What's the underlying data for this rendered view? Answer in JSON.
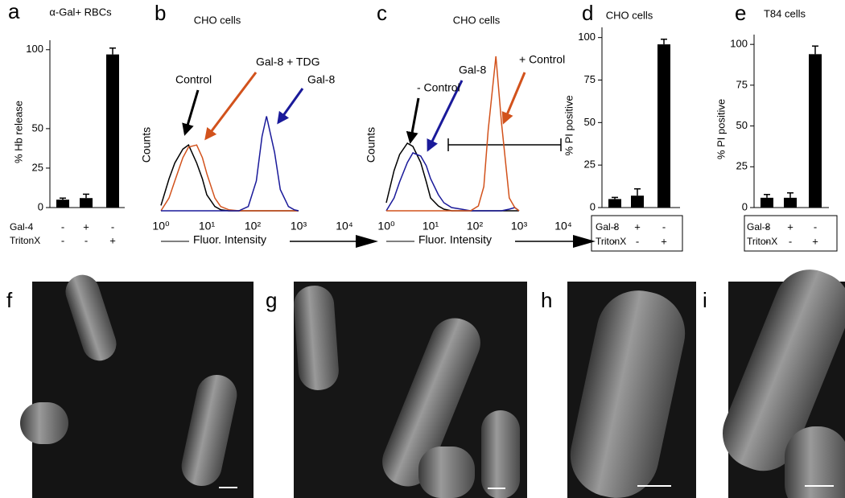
{
  "chart_data": [
    {
      "type": "bar",
      "label": "a",
      "title": "α-Gal+ RBCs",
      "ylabel": "% Hb release",
      "values": [
        5,
        6,
        97
      ],
      "errors": [
        1,
        2.5,
        4
      ],
      "color": "#000000",
      "ylim": [
        0,
        106
      ],
      "yticks": [
        0,
        25,
        50,
        100
      ],
      "conditions": [
        {
          "name": "Gal-4",
          "values": [
            "-",
            "+",
            "-"
          ]
        },
        {
          "name": "TritonX",
          "values": [
            "-",
            "-",
            "+"
          ]
        }
      ]
    },
    {
      "type": "line",
      "label": "b",
      "title": "CHO cells",
      "xlabel": "Fluor. Intensity",
      "ylabel": "Counts",
      "log_x": true,
      "x": [
        1,
        1.5,
        2,
        3,
        4,
        6,
        8,
        10,
        15,
        20,
        30,
        50,
        80,
        120,
        160,
        200,
        300,
        400,
        600,
        800,
        1000
      ],
      "series": [
        {
          "name": "Control",
          "color": "#000000",
          "values": [
            5,
            30,
            45,
            58,
            62,
            45,
            30,
            15,
            4,
            1,
            0,
            0,
            0,
            0,
            0,
            0,
            0,
            0,
            0,
            0,
            0
          ]
        },
        {
          "name": "Gal-8 + TDG",
          "color": "#d2521c",
          "values": [
            0,
            12,
            28,
            50,
            60,
            62,
            50,
            35,
            12,
            4,
            1,
            0,
            0,
            0,
            0,
            0,
            0,
            0,
            0,
            0,
            0
          ]
        },
        {
          "name": "Gal-8",
          "color": "#1a1a9a",
          "values": [
            0,
            0,
            0,
            0,
            0,
            0,
            0,
            0,
            0,
            0,
            0,
            0,
            4,
            28,
            70,
            89,
            55,
            20,
            4,
            1,
            0
          ]
        }
      ],
      "xlim": [
        1,
        10000
      ],
      "ylim": [
        0,
        100
      ],
      "xticks": [
        {
          "value": 1,
          "label": "10⁰"
        },
        {
          "value": 10,
          "label": "10¹"
        },
        {
          "value": 100,
          "label": "10²"
        },
        {
          "value": 1000,
          "label": "10³"
        },
        {
          "value": 10000,
          "label": "10⁴"
        }
      ]
    },
    {
      "type": "line",
      "label": "c",
      "title": "CHO cells",
      "xlabel": "Fluor. Intensity",
      "ylabel": "Counts",
      "log_x": true,
      "x": [
        1,
        1.5,
        2,
        3,
        4,
        6,
        8,
        10,
        15,
        20,
        30,
        50,
        80,
        120,
        160,
        200,
        300,
        400,
        600,
        800,
        1000
      ],
      "series": [
        {
          "name": "- Control",
          "color": "#000000",
          "values": [
            5,
            25,
            35,
            42,
            40,
            30,
            18,
            8,
            3,
            1,
            0,
            0,
            0,
            0,
            0,
            0,
            0,
            0,
            0,
            0,
            0
          ]
        },
        {
          "name": "Gal-8",
          "color": "#1a1a9a",
          "values": [
            0,
            8,
            18,
            30,
            36,
            34,
            28,
            20,
            10,
            5,
            2,
            1,
            0,
            0,
            0,
            0,
            0,
            0,
            1,
            2,
            0
          ]
        },
        {
          "name": "+ Control",
          "color": "#d2521c",
          "values": [
            0,
            0,
            0,
            0,
            0,
            0,
            0,
            0,
            0,
            0,
            0,
            0,
            0,
            3,
            15,
            50,
            96,
            55,
            8,
            2,
            0
          ]
        }
      ],
      "xlim": [
        1,
        10000
      ],
      "ylim": [
        0,
        100
      ],
      "xticks": [
        {
          "value": 1,
          "label": "10⁰"
        },
        {
          "value": 10,
          "label": "10¹"
        },
        {
          "value": 100,
          "label": "10²"
        },
        {
          "value": 1000,
          "label": "10³"
        },
        {
          "value": 10000,
          "label": "10⁴"
        }
      ]
    },
    {
      "type": "bar",
      "label": "d",
      "title": "CHO cells",
      "ylabel": "% PI positive",
      "values": [
        5,
        7,
        96
      ],
      "errors": [
        1,
        4,
        3
      ],
      "color": "#000000",
      "ylim": [
        0,
        106
      ],
      "yticks": [
        0,
        25,
        50,
        75,
        100
      ],
      "conditions": [
        {
          "name": "Gal-8",
          "values": [
            "-",
            "+",
            "-"
          ]
        },
        {
          "name": "TritonX",
          "values": [
            "-",
            "-",
            "+"
          ]
        }
      ]
    },
    {
      "type": "bar",
      "label": "e",
      "title": "T84 cells",
      "ylabel": "% PI positive",
      "values": [
        6,
        6,
        94
      ],
      "errors": [
        2,
        3,
        5
      ],
      "color": "#000000",
      "ylim": [
        0,
        106
      ],
      "yticks": [
        0,
        25,
        50,
        75,
        100
      ],
      "conditions": [
        {
          "name": "Gal-8",
          "values": [
            "-",
            "+",
            "-"
          ]
        },
        {
          "name": "TritonX",
          "values": [
            "-",
            "-",
            "+"
          ]
        }
      ]
    }
  ],
  "images": [
    {
      "label": "f"
    },
    {
      "label": "g"
    },
    {
      "label": "h"
    },
    {
      "label": "i"
    }
  ]
}
